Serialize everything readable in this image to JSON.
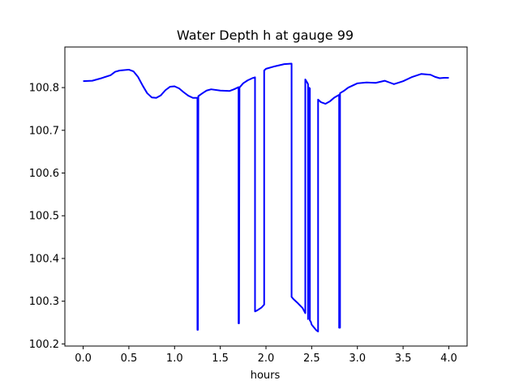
{
  "chart_data": {
    "type": "line",
    "title": "Water Depth h at gauge 99",
    "xlabel": "hours",
    "ylabel": "",
    "xlim": [
      -0.2,
      4.2
    ],
    "ylim": [
      100.195,
      100.895
    ],
    "xticks": [
      {
        "value": 0.0,
        "label": "0.0"
      },
      {
        "value": 0.5,
        "label": "0.5"
      },
      {
        "value": 1.0,
        "label": "1.0"
      },
      {
        "value": 1.5,
        "label": "1.5"
      },
      {
        "value": 2.0,
        "label": "2.0"
      },
      {
        "value": 2.5,
        "label": "2.5"
      },
      {
        "value": 3.0,
        "label": "3.0"
      },
      {
        "value": 3.5,
        "label": "3.5"
      },
      {
        "value": 4.0,
        "label": "4.0"
      }
    ],
    "yticks": [
      {
        "value": 100.2,
        "label": "100.2"
      },
      {
        "value": 100.3,
        "label": "100.3"
      },
      {
        "value": 100.4,
        "label": "100.4"
      },
      {
        "value": 100.5,
        "label": "100.5"
      },
      {
        "value": 100.6,
        "label": "100.6"
      },
      {
        "value": 100.7,
        "label": "100.7"
      },
      {
        "value": 100.8,
        "label": "100.8"
      }
    ],
    "grid": false,
    "series": [
      {
        "color": "#0000ff",
        "x": [
          0.0,
          0.1,
          0.2,
          0.3,
          0.35,
          0.4,
          0.5,
          0.55,
          0.6,
          0.65,
          0.7,
          0.75,
          0.8,
          0.85,
          0.9,
          0.95,
          1.0,
          1.05,
          1.1,
          1.15,
          1.2,
          1.25,
          1.25,
          1.255,
          1.26,
          1.3,
          1.35,
          1.4,
          1.5,
          1.6,
          1.65,
          1.7,
          1.7,
          1.705,
          1.71,
          1.75,
          1.8,
          1.85,
          1.88,
          1.88,
          1.9,
          1.95,
          1.98,
          1.98,
          2.0,
          2.1,
          2.2,
          2.28,
          2.28,
          2.3,
          2.35,
          2.4,
          2.43,
          2.43,
          2.45,
          2.46,
          2.46,
          2.47,
          2.48,
          2.48,
          2.49,
          2.5,
          2.55,
          2.57,
          2.57,
          2.6,
          2.65,
          2.7,
          2.75,
          2.8,
          2.8,
          2.81,
          2.81,
          2.85,
          2.9,
          3.0,
          3.1,
          3.2,
          3.3,
          3.35,
          3.4,
          3.5,
          3.6,
          3.7,
          3.8,
          3.85,
          3.9,
          3.95,
          4.0
        ],
        "y": [
          100.815,
          100.816,
          100.822,
          100.829,
          100.837,
          100.84,
          100.842,
          100.838,
          100.825,
          100.805,
          100.787,
          100.777,
          100.776,
          100.782,
          100.794,
          100.802,
          100.803,
          100.798,
          100.789,
          100.781,
          100.776,
          100.776,
          100.233,
          100.233,
          100.78,
          100.786,
          100.793,
          100.796,
          100.793,
          100.792,
          100.796,
          100.801,
          100.248,
          100.248,
          100.8,
          100.81,
          100.817,
          100.822,
          100.824,
          100.276,
          100.278,
          100.285,
          100.292,
          100.84,
          100.844,
          100.85,
          100.855,
          100.856,
          100.31,
          100.305,
          100.295,
          100.284,
          100.272,
          100.819,
          100.812,
          100.808,
          100.258,
          100.8,
          100.798,
          100.255,
          100.252,
          100.245,
          100.232,
          100.229,
          100.772,
          100.766,
          100.762,
          100.768,
          100.777,
          100.783,
          100.238,
          100.238,
          100.787,
          100.792,
          100.8,
          100.81,
          100.812,
          100.811,
          100.816,
          100.812,
          100.808,
          100.815,
          100.825,
          100.832,
          100.83,
          100.825,
          100.822,
          100.823,
          100.823
        ]
      }
    ]
  }
}
